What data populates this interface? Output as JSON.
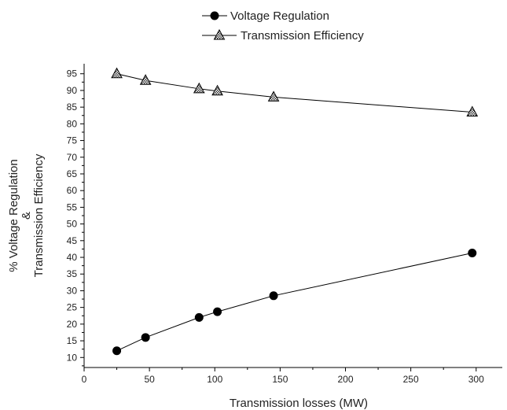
{
  "chart_data": {
    "type": "line",
    "title": "",
    "xlabel": "Transmission losses (MW)",
    "ylabel": [
      "% Voltage Regulation",
      "&",
      "Transmission Efficiency"
    ],
    "xlim": [
      0,
      320
    ],
    "ylim": [
      7,
      98
    ],
    "xticks": [
      0,
      50,
      100,
      150,
      200,
      250,
      300
    ],
    "yticks": [
      10,
      15,
      20,
      25,
      30,
      35,
      40,
      45,
      50,
      55,
      60,
      65,
      70,
      75,
      80,
      85,
      90,
      95
    ],
    "grid": false,
    "legend_position": "top-center",
    "series": [
      {
        "name": "Voltage Regulation",
        "marker": "circle",
        "color": "#000000",
        "x": [
          25,
          47,
          88,
          102,
          145,
          297
        ],
        "y": [
          12,
          16,
          22,
          23.7,
          28.5,
          41.3
        ]
      },
      {
        "name": "Transmission Efficiency",
        "marker": "triangle",
        "color": "#000000",
        "x": [
          25,
          47,
          88,
          102,
          145,
          297
        ],
        "y": [
          95,
          93,
          90.5,
          89.8,
          88,
          83.5
        ]
      }
    ]
  }
}
